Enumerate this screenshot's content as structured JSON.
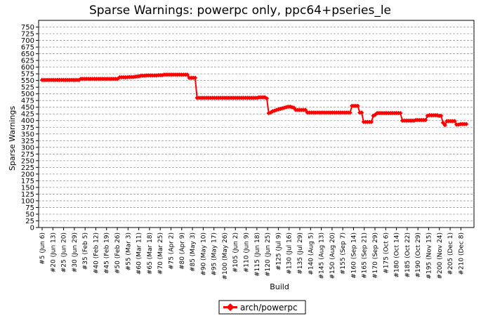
{
  "chart_data": {
    "type": "line",
    "title": "Sparse Warnings: powerpc only, ppc64+pseries_le",
    "xlabel": "Build",
    "ylabel": "Sparse Warnings",
    "ylim": [
      0,
      775
    ],
    "yticks": [
      0,
      25,
      50,
      75,
      100,
      125,
      150,
      175,
      200,
      225,
      250,
      275,
      300,
      325,
      350,
      375,
      400,
      425,
      450,
      475,
      500,
      525,
      550,
      575,
      600,
      625,
      650,
      675,
      700,
      725,
      750
    ],
    "grid": true,
    "legend_position": "bottom-center",
    "x_tick_labels": [
      "#5 (Jun 6)",
      "#20 (Jun 13)",
      "#25 (Jun 20)",
      "#30 (Jun 29)",
      "#35 (Feb 5)",
      "#40 (Feb 12)",
      "#45 (Feb 19)",
      "#50 (Feb 26)",
      "#55 (Mar 3)",
      "#60 (Mar 11)",
      "#65 (Mar 18)",
      "#70 (Mar 25)",
      "#75 (Apr 2)",
      "#80 (Apr 9)",
      "#85 (May 3)",
      "#90 (May 10)",
      "#95 (May 17)",
      "#100 (May 26)",
      "#105 (Jun 2)",
      "#110 (Jun 9)",
      "#115 (Jun 18)",
      "#120 (Jun 25)",
      "#125 (Jul 9)",
      "#130 (Jul 16)",
      "#135 (Jul 29)",
      "#140 (Aug 5)",
      "#145 (Aug 13)",
      "#150 (Aug 20)",
      "#155 (Sep 7)",
      "#160 (Sep 14)",
      "#165 (Sep 21)",
      "#170 (Sep 29)",
      "#175 (Oct 6)",
      "#180 (Oct 14)",
      "#185 (Oct 22)",
      "#190 (Oct 29)",
      "#195 (Nov 15)",
      "#200 (Nov 24)",
      "#205 (Dec 1)",
      "#210 (Dec 8)"
    ],
    "series": [
      {
        "name": "arch/powerpc",
        "color": "#ff0000",
        "values": [
          552,
          552,
          552,
          552,
          552,
          552,
          552,
          552,
          552,
          552,
          552,
          552,
          552,
          552,
          552,
          552,
          552,
          552,
          552,
          552,
          556,
          556,
          556,
          556,
          556,
          556,
          556,
          556,
          556,
          556,
          556,
          556,
          556,
          556,
          556,
          556,
          556,
          556,
          556,
          556,
          562,
          562,
          562,
          562,
          562,
          563,
          563,
          563,
          564,
          565,
          566,
          568,
          568,
          568,
          569,
          569,
          569,
          569,
          569,
          569,
          570,
          570,
          570,
          572,
          572,
          572,
          572,
          572,
          572,
          572,
          572,
          572,
          572,
          572,
          572,
          572,
          560,
          560,
          560,
          560,
          485,
          485,
          485,
          485,
          485,
          485,
          485,
          485,
          485,
          485,
          485,
          485,
          485,
          485,
          485,
          485,
          485,
          485,
          485,
          485,
          485,
          485,
          485,
          485,
          485,
          485,
          485,
          485,
          485,
          485,
          485,
          485,
          487,
          487,
          487,
          487,
          483,
          428,
          430,
          435,
          437,
          440,
          442,
          444,
          446,
          448,
          450,
          452,
          452,
          450,
          448,
          440,
          440,
          440,
          440,
          440,
          440,
          430,
          430,
          430,
          430,
          430,
          430,
          430,
          430,
          430,
          430,
          430,
          430,
          430,
          430,
          430,
          430,
          430,
          430,
          430,
          430,
          430,
          430,
          430,
          455,
          455,
          455,
          455,
          430,
          430,
          395,
          395,
          395,
          395,
          395,
          418,
          422,
          428,
          428,
          428,
          428,
          428,
          428,
          428,
          428,
          428,
          428,
          428,
          428,
          428,
          400,
          400,
          400,
          400,
          400,
          400,
          400,
          402,
          402,
          402,
          402,
          402,
          402,
          418,
          420,
          420,
          420,
          420,
          420,
          418,
          418,
          392,
          383,
          398,
          398,
          398,
          398,
          398,
          385,
          385,
          387,
          387,
          387,
          387
        ]
      }
    ]
  }
}
